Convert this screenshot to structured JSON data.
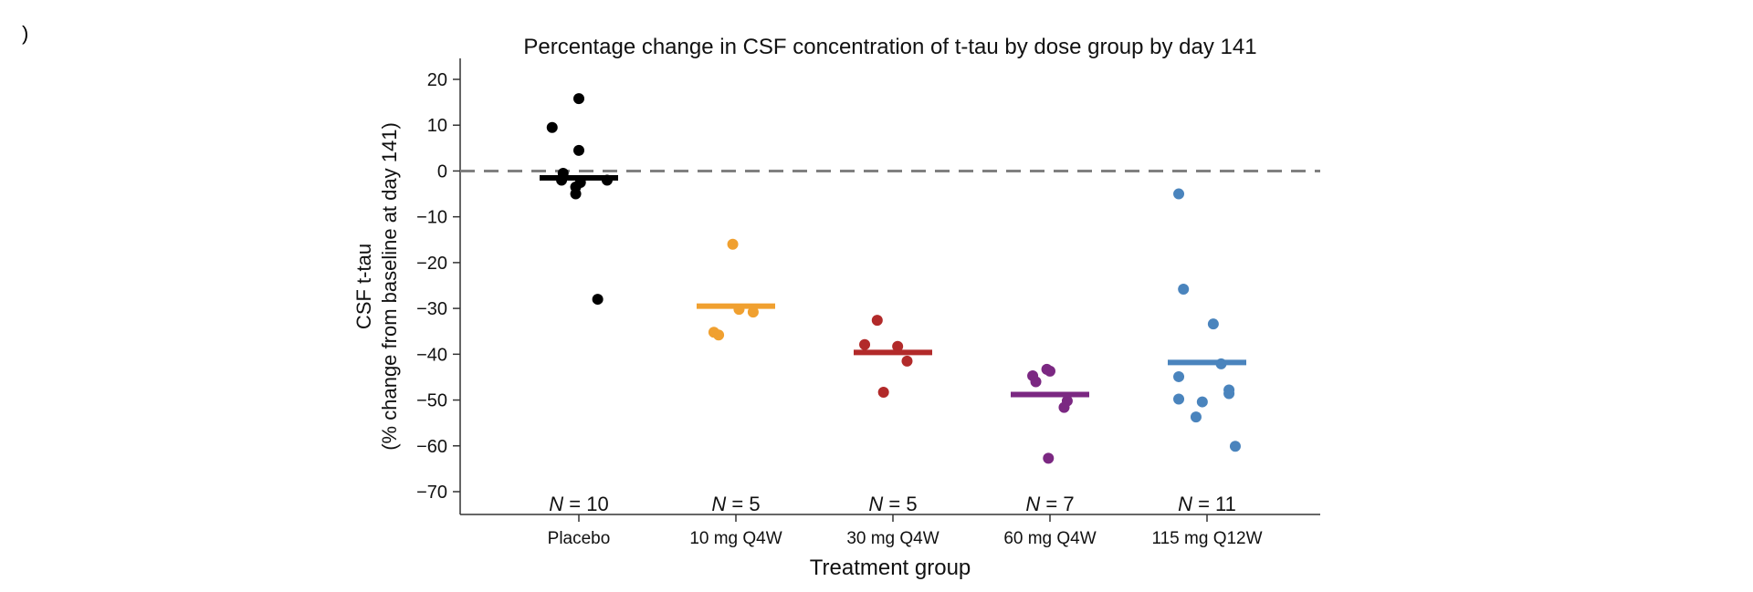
{
  "panel_label": ")",
  "chart_data": {
    "type": "scatter",
    "title": "Percentage change in CSF concentration of t-tau by dose group by day 141",
    "xlabel": "Treatment group",
    "ylabel_line1": "CSF t-tau",
    "ylabel_line2": "(% change from baseline at day 141)",
    "ylim": [
      -75,
      25
    ],
    "yticks": [
      20,
      10,
      0,
      -10,
      -20,
      -30,
      -40,
      -50,
      -60,
      -70
    ],
    "ytick_labels": [
      "20",
      "10",
      "0",
      "−10",
      "−20",
      "−30",
      "−40",
      "−50",
      "−60",
      "−70"
    ],
    "reference_line": 0,
    "categories": [
      "Placebo",
      "10 mg Q4W",
      "30 mg Q4W",
      "60 mg Q4W",
      "115 mg Q12W"
    ],
    "series": [
      {
        "name": "Placebo",
        "color": "#000000",
        "n_prefix": "N",
        "n_label": " = 10",
        "mean": -1.5,
        "points": [
          {
            "jitter": -0.17,
            "value": 9.5
          },
          {
            "jitter": 0.0,
            "value": 15.8
          },
          {
            "jitter": 0.0,
            "value": 4.5
          },
          {
            "jitter": -0.1,
            "value": -0.5
          },
          {
            "jitter": -0.11,
            "value": -2.0
          },
          {
            "jitter": 0.01,
            "value": -2.5
          },
          {
            "jitter": -0.02,
            "value": -3.5
          },
          {
            "jitter": -0.02,
            "value": -5.0
          },
          {
            "jitter": 0.18,
            "value": -2.0
          },
          {
            "jitter": 0.12,
            "value": -28.0
          }
        ]
      },
      {
        "name": "10 mg Q4W",
        "color": "#f0a030",
        "n_prefix": "N",
        "n_label": " = 5",
        "mean": -29.5,
        "points": [
          {
            "jitter": -0.02,
            "value": -16.0
          },
          {
            "jitter": -0.14,
            "value": -35.2
          },
          {
            "jitter": -0.11,
            "value": -35.8
          },
          {
            "jitter": 0.02,
            "value": -30.2
          },
          {
            "jitter": 0.11,
            "value": -30.8
          }
        ]
      },
      {
        "name": "30 mg Q4W",
        "color": "#b22a2a",
        "n_prefix": "N",
        "n_label": " = 5",
        "mean": -39.6,
        "points": [
          {
            "jitter": -0.1,
            "value": -32.6
          },
          {
            "jitter": -0.18,
            "value": -37.9
          },
          {
            "jitter": 0.03,
            "value": -38.3
          },
          {
            "jitter": 0.09,
            "value": -41.5
          },
          {
            "jitter": -0.06,
            "value": -48.3
          }
        ]
      },
      {
        "name": "60 mg Q4W",
        "color": "#7b2882",
        "n_prefix": "N",
        "n_label": " = 7",
        "mean": -48.8,
        "points": [
          {
            "jitter": -0.11,
            "value": -44.7
          },
          {
            "jitter": -0.09,
            "value": -46.0
          },
          {
            "jitter": -0.02,
            "value": -43.3
          },
          {
            "jitter": 0.0,
            "value": -43.7
          },
          {
            "jitter": 0.11,
            "value": -50.2
          },
          {
            "jitter": 0.09,
            "value": -51.6
          },
          {
            "jitter": -0.01,
            "value": -62.7
          }
        ]
      },
      {
        "name": "115 mg Q12W",
        "color": "#4a84bd",
        "n_prefix": "N",
        "n_label": " = 11",
        "mean": -41.8,
        "points": [
          {
            "jitter": -0.18,
            "value": -5.0
          },
          {
            "jitter": -0.15,
            "value": -25.8
          },
          {
            "jitter": 0.04,
            "value": -33.4
          },
          {
            "jitter": 0.09,
            "value": -42.1
          },
          {
            "jitter": -0.18,
            "value": -44.9
          },
          {
            "jitter": 0.14,
            "value": -47.8
          },
          {
            "jitter": 0.14,
            "value": -48.6
          },
          {
            "jitter": -0.18,
            "value": -49.8
          },
          {
            "jitter": -0.03,
            "value": -50.4
          },
          {
            "jitter": -0.07,
            "value": -53.7
          },
          {
            "jitter": 0.18,
            "value": -60.1
          }
        ]
      }
    ]
  }
}
